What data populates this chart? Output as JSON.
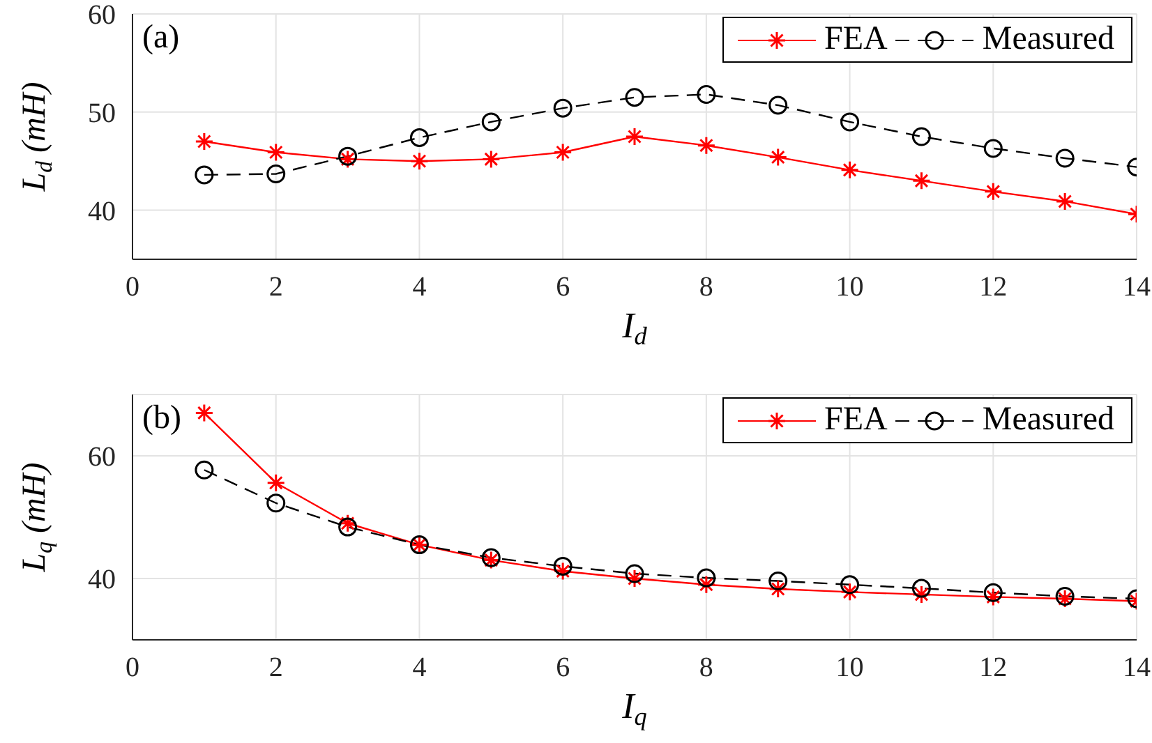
{
  "chart_data": [
    {
      "type": "line",
      "ylabel": "L$_{d}$ (mH)",
      "xlabel": "I$_{d}$",
      "annotations": [
        "(a)"
      ],
      "x": [
        1,
        2,
        3,
        4,
        5,
        6,
        7,
        8,
        9,
        10,
        11,
        12,
        13,
        14
      ],
      "xlim": [
        0,
        14
      ],
      "xticks": [
        0,
        2,
        4,
        6,
        8,
        10,
        12,
        14
      ],
      "ylim": [
        35,
        60
      ],
      "yticks": [
        40,
        50,
        60
      ],
      "grid": true,
      "legend": "top right",
      "series": [
        {
          "name": "FEA",
          "color": "#ff0000",
          "marker": "cross",
          "line_style": "solid",
          "values": [
            47.0,
            45.9,
            45.2,
            45.0,
            45.2,
            45.9,
            47.5,
            46.6,
            45.4,
            44.1,
            43.0,
            41.9,
            40.9,
            39.6
          ]
        },
        {
          "name": "Measured",
          "color": "#000000",
          "marker": "circle",
          "line_style": "dashed",
          "values": [
            43.6,
            43.7,
            45.5,
            47.4,
            49.0,
            50.4,
            51.5,
            51.8,
            50.7,
            49.0,
            47.5,
            46.3,
            45.3,
            44.4
          ]
        }
      ]
    },
    {
      "type": "line",
      "ylabel": "L$_{q}$ (mH)",
      "xlabel": "I$_{q}$",
      "annotations": [
        "(b)"
      ],
      "x": [
        1,
        2,
        3,
        4,
        5,
        6,
        7,
        8,
        9,
        10,
        11,
        12,
        13,
        14
      ],
      "xlim": [
        0,
        14
      ],
      "xticks": [
        0,
        2,
        4,
        6,
        8,
        10,
        12,
        14
      ],
      "ylim": [
        30,
        70
      ],
      "yticks": [
        40,
        60
      ],
      "grid": true,
      "legend": "top right",
      "series": [
        {
          "name": "FEA",
          "color": "#ff0000",
          "marker": "cross",
          "line_style": "solid",
          "values": [
            67.0,
            55.6,
            49.0,
            45.5,
            43.0,
            41.2,
            40.0,
            39.0,
            38.3,
            37.8,
            37.4,
            37.0,
            36.7,
            36.3
          ]
        },
        {
          "name": "Measured",
          "color": "#000000",
          "marker": "circle",
          "line_style": "dashed",
          "values": [
            57.7,
            52.3,
            48.4,
            45.5,
            43.4,
            42.0,
            40.8,
            40.1,
            39.6,
            39.0,
            38.4,
            37.7,
            37.1,
            36.7
          ]
        }
      ]
    }
  ]
}
